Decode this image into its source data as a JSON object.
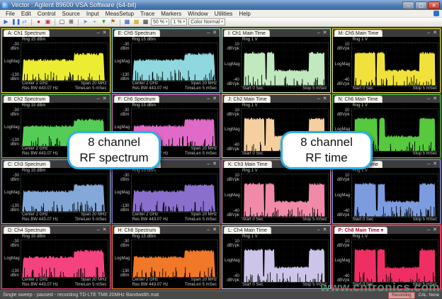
{
  "window": {
    "title": "Vector : Agilent 89600 VSA Software (64-bit)",
    "buttons": {
      "minimize": "–",
      "maximize": "▢",
      "close": "✕"
    }
  },
  "menu": {
    "items": [
      "File",
      "Edit",
      "Control",
      "Source",
      "Input",
      "MeasSetup",
      "Trace",
      "Markers",
      "Window",
      "Utilities",
      "Help"
    ]
  },
  "toolbar": {
    "icons": [
      {
        "name": "play-icon",
        "glyph": "▶",
        "color": "#2b6fd4"
      },
      {
        "name": "pause-icon",
        "glyph": "❚❚",
        "color": "#2b6fd4"
      },
      {
        "name": "restart-icon",
        "glyph": "⇄",
        "color": "#6f9bd4"
      },
      {
        "name": "sep"
      },
      {
        "name": "record-icon",
        "glyph": "●",
        "color": "#d42020"
      },
      {
        "name": "record-pause-icon",
        "glyph": "▣",
        "color": "#c03030"
      },
      {
        "name": "sep"
      },
      {
        "name": "display-icon",
        "glyph": "▢",
        "color": "#222222"
      },
      {
        "name": "layout-grid-icon",
        "glyph": "⊞",
        "color": "#222222"
      },
      {
        "name": "sep"
      },
      {
        "name": "pointer-icon",
        "glyph": "➤",
        "color": "#5a8ac8"
      },
      {
        "name": "zoom-icon",
        "glyph": "⌖",
        "color": "#909090"
      },
      {
        "name": "filter-icon",
        "glyph": "▼",
        "color": "#1fa81f"
      },
      {
        "name": "marker-icon",
        "glyph": "⚑",
        "color": "#c06010"
      },
      {
        "name": "sep"
      },
      {
        "name": "trace-a-icon",
        "glyph": "▦",
        "color": "#2b4fd4"
      },
      {
        "name": "trace-b-icon",
        "glyph": "▦",
        "color": "#caa300"
      },
      {
        "name": "trace-c-icon",
        "glyph": "▦",
        "color": "#333333"
      }
    ],
    "dropdowns": [
      {
        "name": "scale-select",
        "value": "50 %"
      },
      {
        "name": "percent-select",
        "value": "1 %"
      },
      {
        "name": "color-select",
        "value": "Color Normal"
      }
    ]
  },
  "callouts": {
    "spectrum": {
      "line1": "8 channel",
      "line2": "RF spectrum"
    },
    "time": {
      "line1": "8 channel",
      "line2": "RF time"
    }
  },
  "status_bar": {
    "left": "Single sweep - paused - recording TD-LTE TM8 20MHz Bandwidth.mat",
    "badge": "Recording",
    "cal": "CAL: None"
  },
  "watermark": "www.cntronics.com",
  "plot_common": {
    "spectrum": {
      "rng": "Rng 15 dBm",
      "y_top": "-30",
      "y_unit": "dBm",
      "y_mid": "LogMag",
      "y_bot": "-130",
      "ann": [
        [
          "Center 2 GHz",
          "Span 20 MHz"
        ],
        [
          "Res BW 443.07 Hz",
          "TimeLen 5 mSec"
        ]
      ]
    },
    "time": {
      "rng": "Rng 1 V",
      "y_top": "10",
      "y_unit": "dBVpk",
      "y_mid": "LogMag",
      "y_bot": "-40",
      "ann": [
        [
          "Start 0 Sec",
          "Stop 5 mSec"
        ]
      ]
    }
  },
  "plots": [
    {
      "id": "A",
      "title": "A: Ch1 Spectrum",
      "type": "spectrum",
      "color": "#ecec33",
      "active": false
    },
    {
      "id": "E",
      "title": "E: Ch5 Spectrum",
      "type": "spectrum",
      "color": "#8fd8e0",
      "active": false
    },
    {
      "id": "I",
      "title": "I: Ch1 Main Time",
      "type": "time",
      "color": "#c2e8c0",
      "active": false
    },
    {
      "id": "M",
      "title": "M: Ch5 Main Time",
      "type": "time",
      "color": "#f0e23a",
      "active": false
    },
    {
      "id": "B",
      "title": "B: Ch2 Spectrum",
      "type": "spectrum",
      "color": "#55cc55",
      "active": false
    },
    {
      "id": "F",
      "title": "F: Ch6 Spectrum",
      "type": "spectrum",
      "color": "#e06ac8",
      "active": false
    },
    {
      "id": "J",
      "title": "J: Ch2 Main Time",
      "type": "time",
      "color": "#f5cf9e",
      "active": false
    },
    {
      "id": "N",
      "title": "N: Ch6 Main Time",
      "type": "time",
      "color": "#56c93e",
      "active": false
    },
    {
      "id": "C",
      "title": "C: Ch3 Spectrum",
      "type": "spectrum",
      "color": "#84a8d8",
      "active": false
    },
    {
      "id": "G",
      "title": "G: Ch7 Spectrum",
      "type": "spectrum",
      "color": "#8a70cc",
      "active": false
    },
    {
      "id": "K",
      "title": "K: Ch3 Main Time",
      "type": "time",
      "color": "#f08aa8",
      "active": false
    },
    {
      "id": "O",
      "title": "O: Ch7 Main Time",
      "type": "time",
      "color": "#7d9ce0",
      "active": false
    },
    {
      "id": "D",
      "title": "D: Ch4 Spectrum",
      "type": "spectrum",
      "color": "#f4437e",
      "active": false
    },
    {
      "id": "H",
      "title": "H: Ch8 Spectrum",
      "type": "spectrum",
      "color": "#f07828",
      "active": false
    },
    {
      "id": "L",
      "title": "L: Ch4 Main Time",
      "type": "time",
      "color": "#cdc4ea",
      "active": false
    },
    {
      "id": "P",
      "title": "P: Ch8 Main Time ▾",
      "type": "time",
      "color": "#ef2f64",
      "active": true
    }
  ]
}
